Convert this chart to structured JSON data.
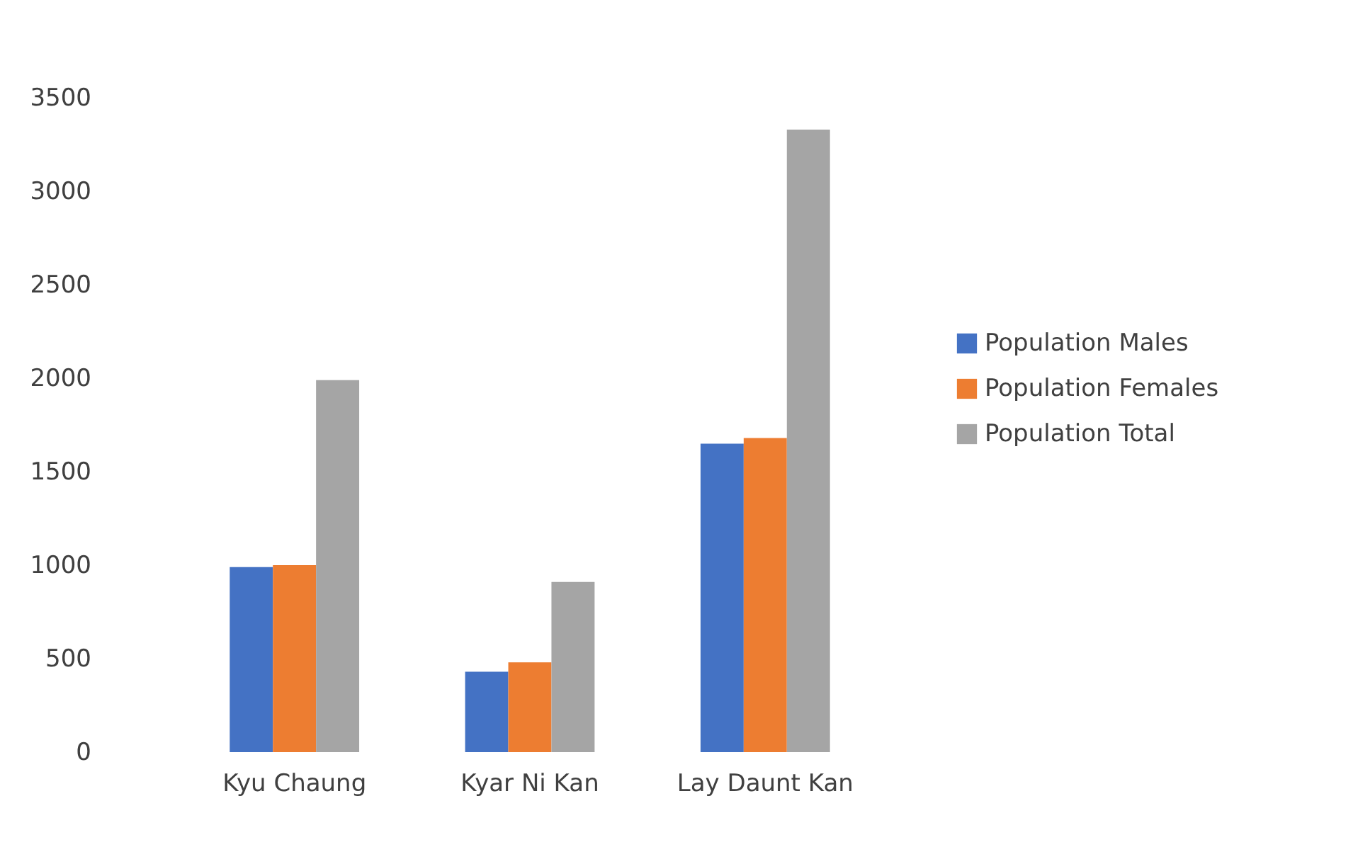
{
  "chart_data": {
    "type": "bar",
    "categories": [
      "Kyu Chaung",
      "Kyar Ni Kan",
      "Lay Daunt Kan"
    ],
    "series": [
      {
        "name": "Population Males",
        "color": "#4472c4",
        "values": [
          990,
          430,
          1650
        ]
      },
      {
        "name": "Population Females",
        "color": "#ed7d31",
        "values": [
          1000,
          480,
          1680
        ]
      },
      {
        "name": "Population Total",
        "color": "#a5a5a5",
        "values": [
          1990,
          910,
          3330
        ]
      }
    ],
    "ylim": [
      0,
      3500
    ],
    "yticks": [
      0,
      500,
      1000,
      1500,
      2000,
      2500,
      3000,
      3500
    ],
    "grid": false,
    "legend": "right"
  }
}
